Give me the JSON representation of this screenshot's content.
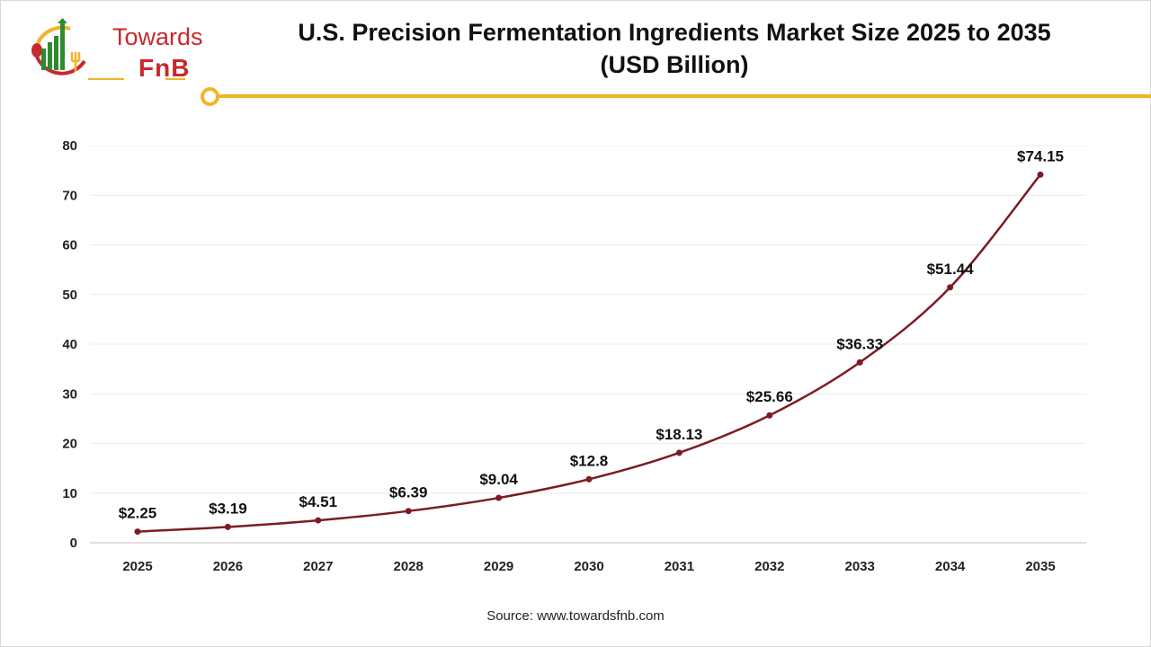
{
  "logo": {
    "line1": "Towards",
    "line2": "FnB"
  },
  "title_line1": "U.S. Precision Fermentation Ingredients Market Size 2025 to 2035",
  "title_line2": "(USD Billion)",
  "source": "Source: www.towardsfnb.com",
  "colors": {
    "line": "#7b1c24",
    "accent": "#f0b429",
    "brand": "#c8282e"
  },
  "chart_data": {
    "type": "line",
    "title": "U.S. Precision Fermentation Ingredients Market Size 2025 to 2035 (USD Billion)",
    "categories": [
      "2025",
      "2026",
      "2027",
      "2028",
      "2029",
      "2030",
      "2031",
      "2032",
      "2033",
      "2034",
      "2035"
    ],
    "values": [
      2.25,
      3.19,
      4.51,
      6.39,
      9.04,
      12.8,
      18.13,
      25.66,
      36.33,
      51.44,
      74.15
    ],
    "data_labels": [
      "$2.25",
      "$3.19",
      "$4.51",
      "$6.39",
      "$9.04",
      "$12.8",
      "$18.13",
      "$25.66",
      "$36.33",
      "$51.44",
      "$74.15"
    ],
    "yticks": [
      0,
      10,
      20,
      30,
      40,
      50,
      60,
      70,
      80
    ],
    "ylim": [
      0,
      80
    ],
    "grid": true,
    "xlabel": "",
    "ylabel": ""
  }
}
